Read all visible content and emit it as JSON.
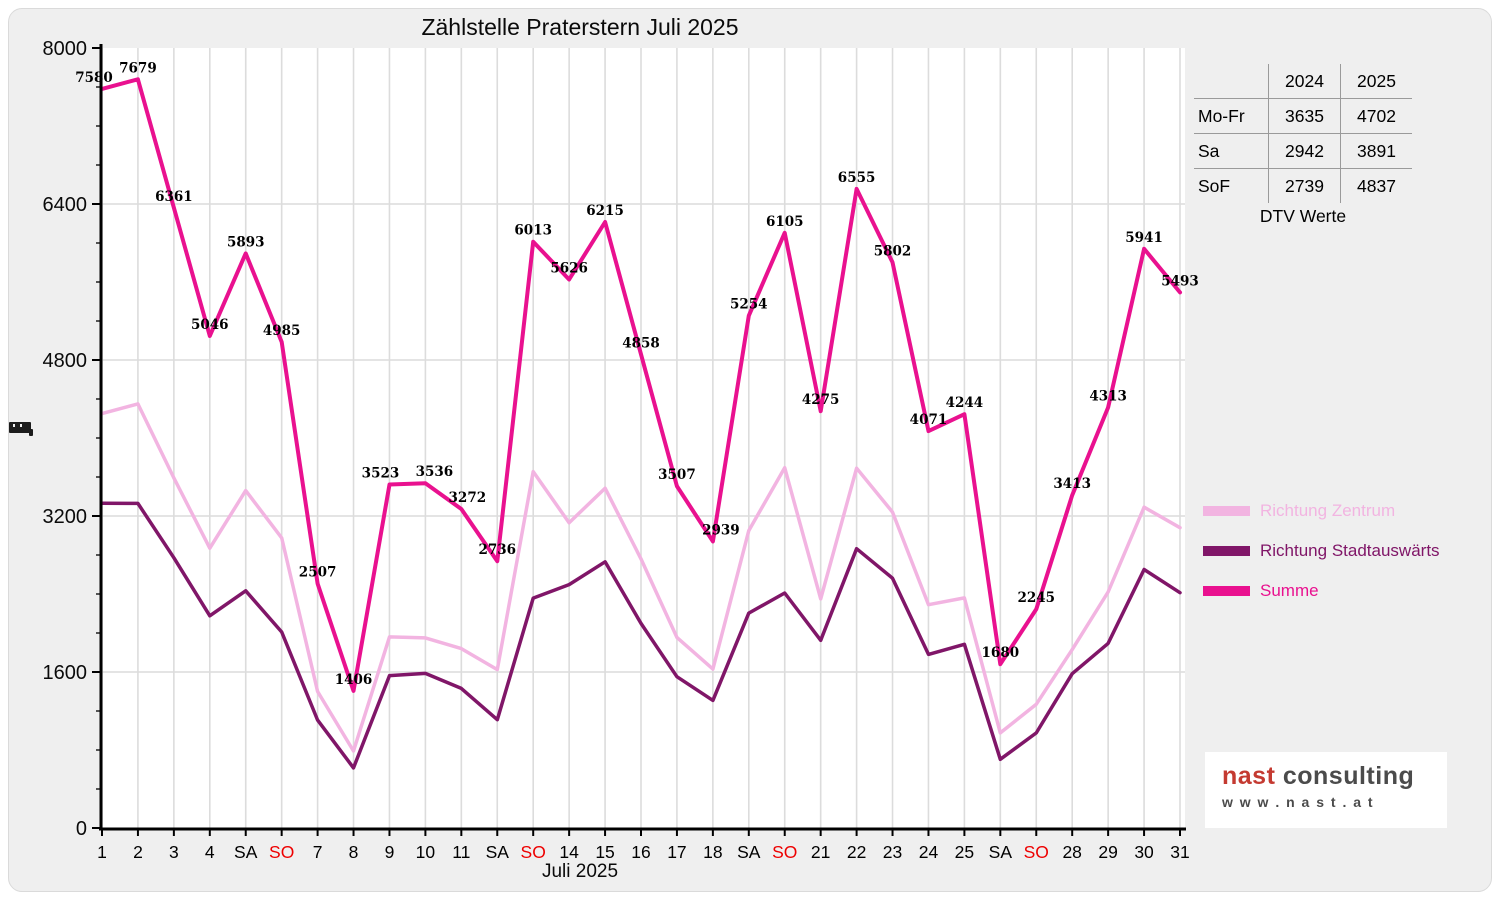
{
  "title": "Zählstelle Praterstern Juli 2025",
  "x_axis": {
    "title": "Juli 2025",
    "labels": [
      "1",
      "2",
      "3",
      "4",
      "SA",
      "SO",
      "7",
      "8",
      "9",
      "10",
      "11",
      "SA",
      "SO",
      "14",
      "15",
      "16",
      "17",
      "18",
      "SA",
      "SO",
      "21",
      "22",
      "23",
      "24",
      "25",
      "SA",
      "SO",
      "28",
      "29",
      "30",
      "31"
    ],
    "sunday_label": "SO",
    "sunday_color": "#ee0000",
    "weekday_color": "#000000"
  },
  "y_axis": {
    "ticks": [
      0,
      1600,
      3200,
      4800,
      6400,
      8000
    ],
    "minor_tick_step": 400
  },
  "icons": {
    "y_axis_label": "compressed-text-blob"
  },
  "chart_data": {
    "type": "line",
    "title": "Zählstelle Praterstern Juli 2025",
    "xlabel": "Juli 2025",
    "ylabel": "",
    "ylim": [
      0,
      8000
    ],
    "grid": true,
    "legend_position": "right",
    "categories": [
      "1",
      "2",
      "3",
      "4",
      "SA",
      "SO",
      "7",
      "8",
      "9",
      "10",
      "11",
      "SA",
      "SO",
      "14",
      "15",
      "16",
      "17",
      "18",
      "SA",
      "SO",
      "21",
      "22",
      "23",
      "24",
      "25",
      "SA",
      "SO",
      "28",
      "29",
      "30",
      "31"
    ],
    "series": [
      {
        "name": "Richtung Zentrum",
        "color": "#f2b4e1",
        "width": 3.5,
        "labeled": false,
        "values": [
          4250,
          4350,
          3590,
          2870,
          3460,
          2975,
          1400,
          790,
          1960,
          1950,
          1840,
          1625,
          3655,
          3130,
          3485,
          2760,
          1955,
          1630,
          3050,
          3695,
          2350,
          3690,
          3240,
          2290,
          2360,
          975,
          1270,
          1830,
          2420,
          3290,
          3080
        ]
      },
      {
        "name": "Richtung Stadtauswärts",
        "color": "#801668",
        "width": 3.5,
        "labeled": false,
        "values": [
          3330,
          3329,
          2771,
          2176,
          2433,
          2010,
          1107,
          616,
          1563,
          1586,
          1432,
          1111,
          2358,
          2496,
          2730,
          2098,
          1552,
          1309,
          2204,
          2410,
          1925,
          2865,
          2562,
          1781,
          1884,
          705,
          975,
          1583,
          1893,
          2651,
          2413
        ]
      },
      {
        "name": "Summe",
        "color": "#e9118f",
        "width": 4,
        "labeled": true,
        "values": [
          7580,
          7679,
          6361,
          5046,
          5893,
          4985,
          2507,
          1406,
          3523,
          3536,
          3272,
          2736,
          6013,
          5626,
          6215,
          4858,
          3507,
          2939,
          5254,
          6105,
          4275,
          6555,
          5802,
          4071,
          4244,
          1680,
          2245,
          3413,
          4313,
          5941,
          5493
        ]
      }
    ]
  },
  "table": {
    "years": [
      "2024",
      "2025"
    ],
    "rows": [
      {
        "label": "Mo-Fr",
        "y2024": "3635",
        "y2025": "4702"
      },
      {
        "label": "Sa",
        "y2024": "2942",
        "y2025": "3891"
      },
      {
        "label": "SoF",
        "y2024": "2739",
        "y2025": "4837"
      }
    ],
    "caption": "DTV Werte"
  },
  "logo": {
    "brand_primary": "nast",
    "brand_secondary": "consulting",
    "url": "w w w . n a s t . a t"
  },
  "colors": {
    "panel_background": "#efefef",
    "plot_background": "#ffffff",
    "gridline": "#dcdcdc",
    "axis": "#000000",
    "summe": "#e9118f",
    "zentrum": "#f2b4e1",
    "stadtauswaerts": "#801668",
    "sunday_red": "#ee0000",
    "logo_red": "#c43a31",
    "logo_gray": "#4b4b4b"
  }
}
